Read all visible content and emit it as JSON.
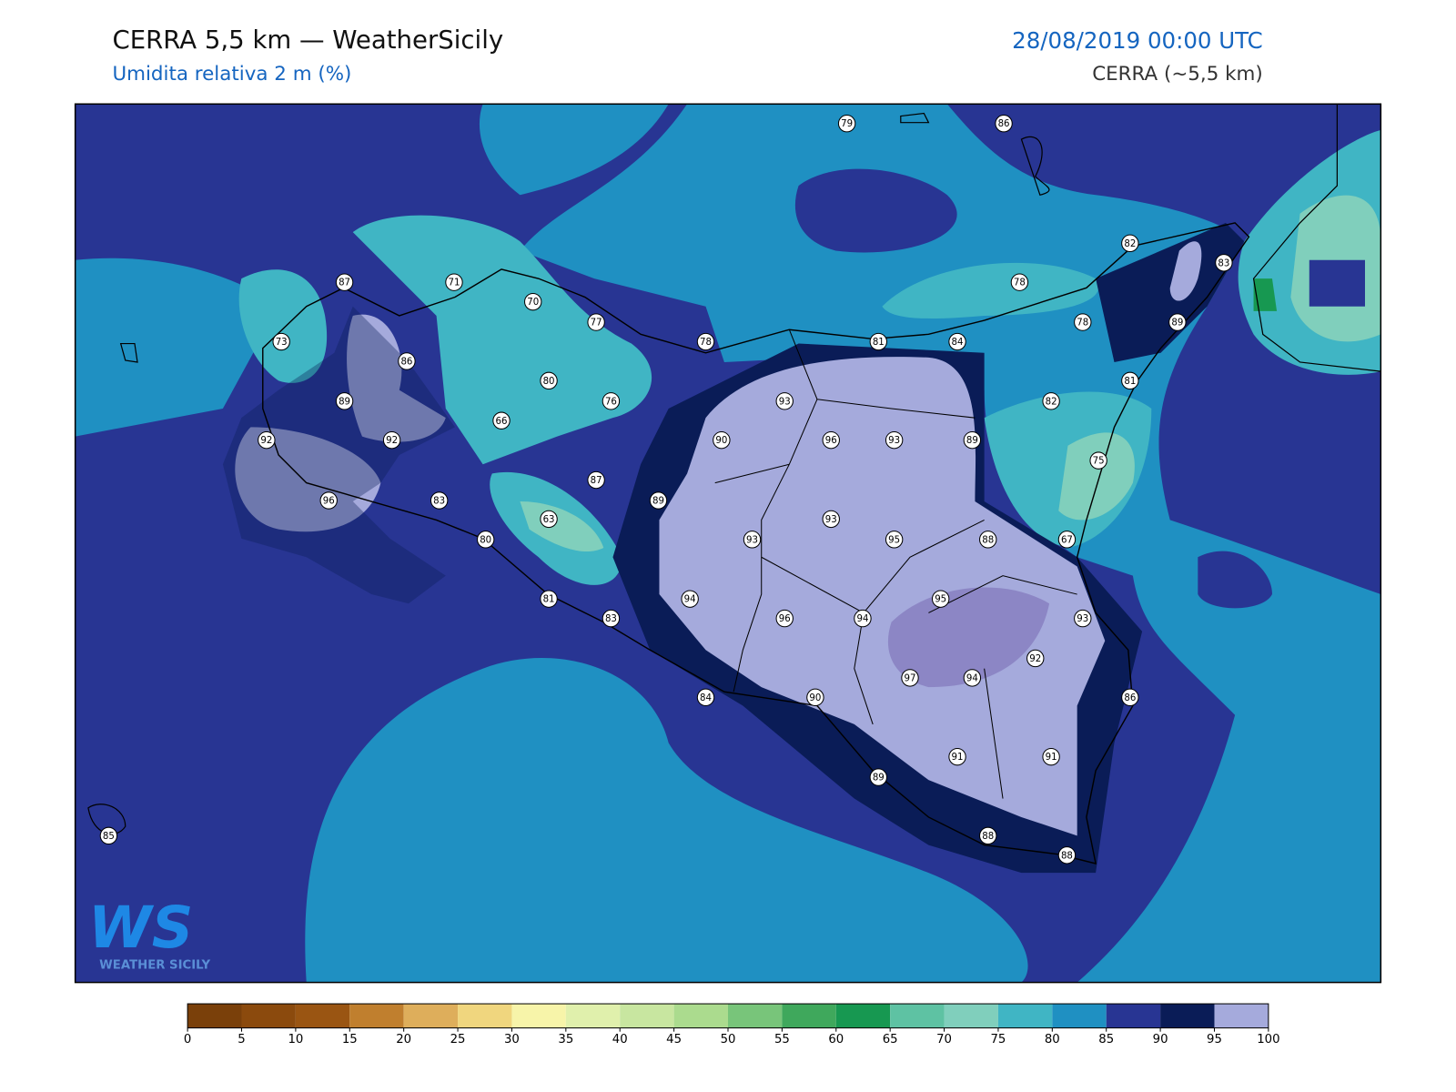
{
  "header": {
    "title": "CERRA 5,5 km — WeatherSicily",
    "subtitle": "Umidita relativa 2 m (%)",
    "datetime": "28/08/2019 00:00 UTC",
    "model": "CERRA (~5,5 km)"
  },
  "stations": [
    79,
    86,
    82,
    83,
    87,
    71,
    70,
    78,
    73,
    77,
    78,
    81,
    84,
    78,
    89,
    86,
    80,
    76,
    89,
    93,
    82,
    81,
    66,
    92,
    92,
    90,
    96,
    93,
    89,
    75,
    96,
    83,
    87,
    89,
    63,
    80,
    93,
    93,
    95,
    88,
    67,
    81,
    83,
    94,
    96,
    94,
    95,
    93,
    92,
    97,
    94,
    84,
    90,
    86,
    91,
    91,
    89,
    88,
    88,
    85
  ],
  "logo": {
    "mark": "WS",
    "text": "WEATHER SICILY"
  },
  "colorbar": {
    "ticks": [
      0,
      5,
      10,
      15,
      20,
      25,
      30,
      35,
      40,
      45,
      50,
      55,
      60,
      65,
      70,
      75,
      80,
      85,
      90,
      95,
      100
    ],
    "colors": [
      "#7a400a",
      "#8b4a0d",
      "#9a5512",
      "#c07f2e",
      "#deae5b",
      "#f0d67e",
      "#f7f4a9",
      "#e0f0ac",
      "#c8e6a0",
      "#abdb8e",
      "#78c57a",
      "#3fa85c",
      "#179851",
      "#5ec2a3",
      "#80cfbc",
      "#40b5c4",
      "#1f90c2",
      "#283593",
      "#0a1c57",
      "#a5aadc",
      "#8c86c5"
    ]
  }
}
